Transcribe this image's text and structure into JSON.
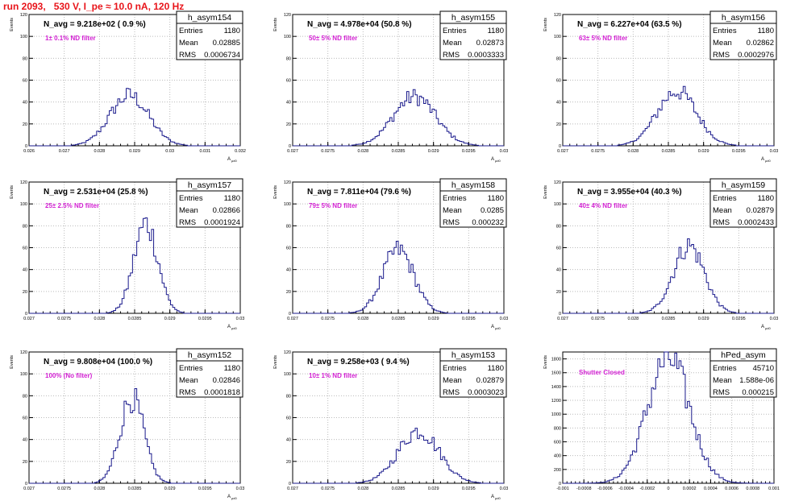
{
  "title": "run 2093,   530 V, I_pe ≈ 10.0 nA, 120 Hz",
  "colors": {
    "histogram": "#1a1a8c",
    "title": "#e8141a",
    "annotation": "#d321d3",
    "grid": "#bbbbbb"
  },
  "chart_data": [
    {
      "type": "bar",
      "name": "h_asym154",
      "n_avg_text": "N_avg = 9.218e+02 ( 0.9 %)",
      "annotation": "1± 0.1% ND filter",
      "stats": {
        "entries": "1180",
        "mean": "0.02885",
        "rms": "0.0006734"
      },
      "xlim": [
        0.026,
        0.032
      ],
      "ylim": [
        0,
        120
      ],
      "xticks": [
        "0.026",
        "0.027",
        "0.028",
        "0.029",
        "0.03",
        "0.031",
        "0.032"
      ],
      "yticks": [
        "0",
        "20",
        "40",
        "60",
        "80",
        "100",
        "120"
      ],
      "xlabel": "A",
      "xlabel_sub": "μd0",
      "ylabel": "Events",
      "center": 0.02885,
      "sigma": 0.00055,
      "peak": 46
    },
    {
      "type": "bar",
      "name": "h_asym155",
      "n_avg_text": "N_avg = 4.978e+04 (50.8 %)",
      "annotation": "50± 5% ND filter",
      "stats": {
        "entries": "1180",
        "mean": "0.02873",
        "rms": "0.0003333"
      },
      "xlim": [
        0.027,
        0.03
      ],
      "ylim": [
        0,
        120
      ],
      "xticks": [
        "0.027",
        "0.0275",
        "0.028",
        "0.0285",
        "0.029",
        "0.0295",
        "0.03"
      ],
      "yticks": [
        "0",
        "20",
        "40",
        "60",
        "80",
        "100",
        "120"
      ],
      "xlabel": "A",
      "xlabel_sub": "μd0",
      "ylabel": "Events",
      "center": 0.02873,
      "sigma": 0.0003,
      "peak": 45
    },
    {
      "type": "bar",
      "name": "h_asym156",
      "n_avg_text": "N_avg = 6.227e+04 (63.5 %)",
      "annotation": "63± 5% ND filter",
      "stats": {
        "entries": "1180",
        "mean": "0.02862",
        "rms": "0.0002976"
      },
      "xlim": [
        0.027,
        0.03
      ],
      "ylim": [
        0,
        120
      ],
      "xticks": [
        "0.027",
        "0.0275",
        "0.028",
        "0.0285",
        "0.029",
        "0.0295",
        "0.03"
      ],
      "yticks": [
        "0",
        "20",
        "40",
        "60",
        "80",
        "100",
        "120"
      ],
      "xlabel": "A",
      "xlabel_sub": "μd0",
      "ylabel": "Events",
      "center": 0.02862,
      "sigma": 0.00028,
      "peak": 50
    },
    {
      "type": "bar",
      "name": "h_asym157",
      "n_avg_text": "N_avg = 2.531e+04 (25.8 %)",
      "annotation": "25± 2.5% ND filter",
      "stats": {
        "entries": "1180",
        "mean": "0.02866",
        "rms": "0.0001924"
      },
      "xlim": [
        0.027,
        0.03
      ],
      "ylim": [
        0,
        120
      ],
      "xticks": [
        "0.027",
        "0.0275",
        "0.028",
        "0.0285",
        "0.029",
        "0.0295",
        "0.03"
      ],
      "yticks": [
        "0",
        "20",
        "40",
        "60",
        "80",
        "100",
        "120"
      ],
      "xlabel": "A",
      "xlabel_sub": "μd0",
      "ylabel": "Events",
      "center": 0.02866,
      "sigma": 0.00017,
      "peak": 82
    },
    {
      "type": "bar",
      "name": "h_asym158",
      "n_avg_text": "N_avg = 7.811e+04 (79.6 %)",
      "annotation": "79± 5% ND filter",
      "stats": {
        "entries": "1180",
        "mean": "0.0285",
        "rms": "0.000232"
      },
      "xlim": [
        0.027,
        0.03
      ],
      "ylim": [
        0,
        120
      ],
      "xticks": [
        "0.027",
        "0.0275",
        "0.028",
        "0.0285",
        "0.029",
        "0.0295",
        "0.03"
      ],
      "yticks": [
        "0",
        "20",
        "40",
        "60",
        "80",
        "100",
        "120"
      ],
      "xlabel": "A",
      "xlabel_sub": "μd0",
      "ylabel": "Events",
      "center": 0.0285,
      "sigma": 0.00022,
      "peak": 58
    },
    {
      "type": "bar",
      "name": "h_asym159",
      "n_avg_text": "N_avg = 3.955e+04 (40.3 %)",
      "annotation": "40± 4% ND filter",
      "stats": {
        "entries": "1180",
        "mean": "0.02879",
        "rms": "0.0002433"
      },
      "xlim": [
        0.027,
        0.03
      ],
      "ylim": [
        0,
        120
      ],
      "xticks": [
        "0.027",
        "0.0275",
        "0.028",
        "0.0285",
        "0.029",
        "0.0295",
        "0.03"
      ],
      "yticks": [
        "0",
        "20",
        "40",
        "60",
        "80",
        "100",
        "120"
      ],
      "xlabel": "A",
      "xlabel_sub": "μd0",
      "ylabel": "Events",
      "center": 0.02879,
      "sigma": 0.00022,
      "peak": 62
    },
    {
      "type": "bar",
      "name": "h_asym152",
      "n_avg_text": "N_avg = 9.808e+04 (100.0 %)",
      "annotation": "100% (No filter)",
      "stats": {
        "entries": "1180",
        "mean": "0.02846",
        "rms": "0.0001818"
      },
      "xlim": [
        0.027,
        0.03
      ],
      "ylim": [
        0,
        120
      ],
      "xticks": [
        "0.027",
        "0.0275",
        "0.028",
        "0.0285",
        "0.029",
        "0.0295",
        "0.03"
      ],
      "yticks": [
        "0",
        "20",
        "40",
        "60",
        "80",
        "100",
        "120"
      ],
      "xlabel": "A",
      "xlabel_sub": "μd0",
      "ylabel": "Events",
      "center": 0.02846,
      "sigma": 0.00017,
      "peak": 78
    },
    {
      "type": "bar",
      "name": "h_asym153",
      "n_avg_text": "N_avg = 9.258e+03 ( 9.4 %)",
      "annotation": "10± 1% ND filter",
      "stats": {
        "entries": "1180",
        "mean": "0.02879",
        "rms": "0.0003023"
      },
      "xlim": [
        0.027,
        0.03
      ],
      "ylim": [
        0,
        120
      ],
      "xticks": [
        "0.027",
        "0.0275",
        "0.028",
        "0.0285",
        "0.029",
        "0.0295",
        "0.03"
      ],
      "yticks": [
        "0",
        "20",
        "40",
        "60",
        "80",
        "100",
        "120"
      ],
      "xlabel": "A",
      "xlabel_sub": "μd0",
      "ylabel": "Events",
      "center": 0.02879,
      "sigma": 0.00029,
      "peak": 48
    },
    {
      "type": "bar",
      "name": "hPed_asym",
      "n_avg_text": "",
      "annotation": "Shutter Closed",
      "stats": {
        "entries": "45710",
        "mean": "1.588e-06",
        "rms": "0.000215"
      },
      "xlim": [
        -0.001,
        0.001
      ],
      "ylim": [
        0,
        1900
      ],
      "xticks": [
        "-0.001",
        "-0.0008",
        "-0.0006",
        "-0.0004",
        "-0.0002",
        "0",
        "0.0002",
        "0.0004",
        "0.0006",
        "0.0008",
        "0.001"
      ],
      "yticks": [
        "0",
        "200",
        "400",
        "600",
        "800",
        "1000",
        "1200",
        "1400",
        "1600",
        "1800"
      ],
      "xlabel": "",
      "xlabel_sub": "",
      "ylabel": "Events",
      "center": 0.0,
      "sigma": 0.0002,
      "peak": 1800
    }
  ]
}
